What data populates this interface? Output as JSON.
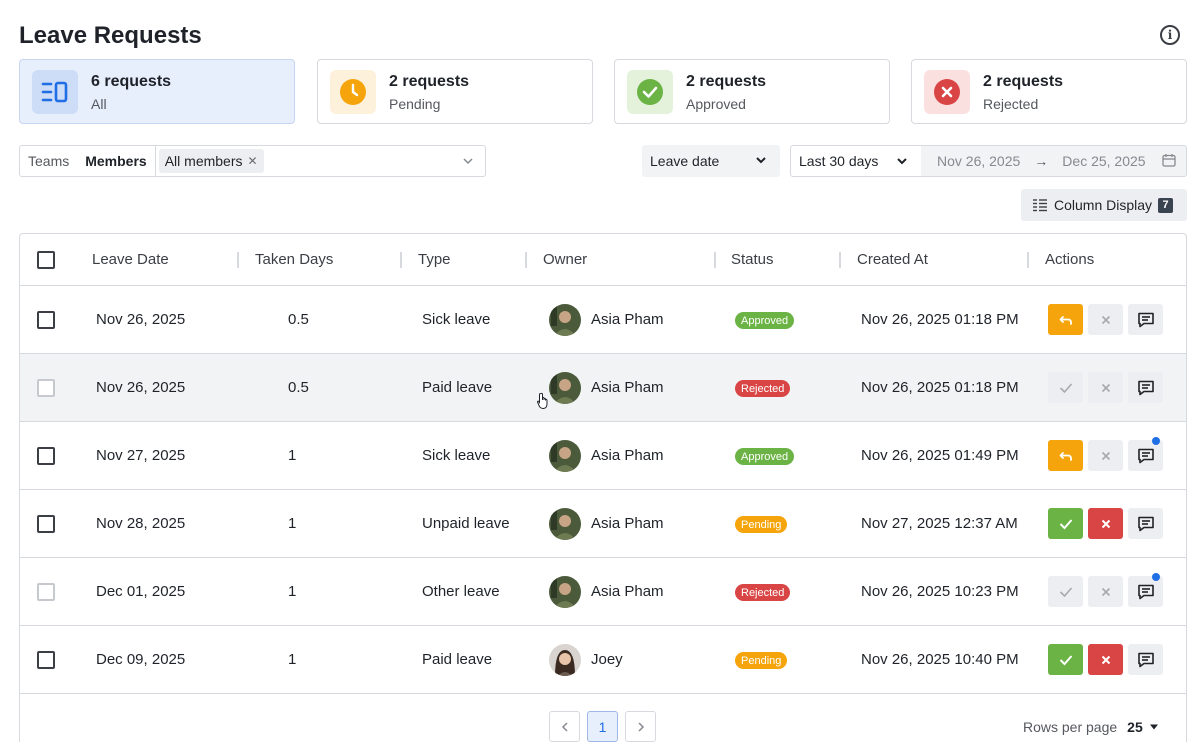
{
  "page": {
    "title": "Leave Requests"
  },
  "stats": [
    {
      "count": "6 requests",
      "label": "All",
      "icon": "list-icon",
      "color": "#1f6ee6"
    },
    {
      "count": "2 requests",
      "label": "Pending",
      "icon": "clock-icon",
      "color": "#f5a50b"
    },
    {
      "count": "2 requests",
      "label": "Approved",
      "icon": "check-circle-icon",
      "color": "#6bb344"
    },
    {
      "count": "2 requests",
      "label": "Rejected",
      "icon": "x-circle-icon",
      "color": "#d94545"
    }
  ],
  "filters": {
    "teams": "Teams",
    "members": "Members",
    "member_chip": "All members",
    "date_type": "Leave date",
    "period": "Last 30 days",
    "start_date": "Nov 26, 2025",
    "end_date": "Dec 25, 2025"
  },
  "column_display": {
    "label": "Column Display",
    "count": "7"
  },
  "table": {
    "headers": [
      "Leave Date",
      "Taken Days",
      "Type",
      "Owner",
      "Status",
      "Created At",
      "Actions"
    ],
    "rows": [
      {
        "leave_date": "Nov 26, 2025",
        "days": "0.5",
        "type": "Sick leave",
        "owner": "Asia Pham",
        "status": "Approved",
        "created": "Nov 26, 2025 01:18 PM"
      },
      {
        "leave_date": "Nov 26, 2025",
        "days": "0.5",
        "type": "Paid leave",
        "owner": "Asia Pham",
        "status": "Rejected",
        "created": "Nov 26, 2025 01:18 PM"
      },
      {
        "leave_date": "Nov 27, 2025",
        "days": "1",
        "type": "Sick leave",
        "owner": "Asia Pham",
        "status": "Approved",
        "created": "Nov 26, 2025 01:49 PM"
      },
      {
        "leave_date": "Nov 28, 2025",
        "days": "1",
        "type": "Unpaid leave",
        "owner": "Asia Pham",
        "status": "Pending",
        "created": "Nov 27, 2025 12:37 AM"
      },
      {
        "leave_date": "Dec 01, 2025",
        "days": "1",
        "type": "Other leave",
        "owner": "Asia Pham",
        "status": "Rejected",
        "created": "Nov 26, 2025 10:23 PM"
      },
      {
        "leave_date": "Dec 09, 2025",
        "days": "1",
        "type": "Paid leave",
        "owner": "Joey",
        "status": "Pending",
        "created": "Nov 26, 2025 10:40 PM"
      }
    ]
  },
  "pagination": {
    "current_page": "1",
    "rows_per_page_label": "Rows per page",
    "rows_per_page": "25"
  },
  "colors": {
    "approved": "#6bb344",
    "rejected": "#d94545",
    "pending": "#f5a50b",
    "accent": "#1f6ee6"
  }
}
